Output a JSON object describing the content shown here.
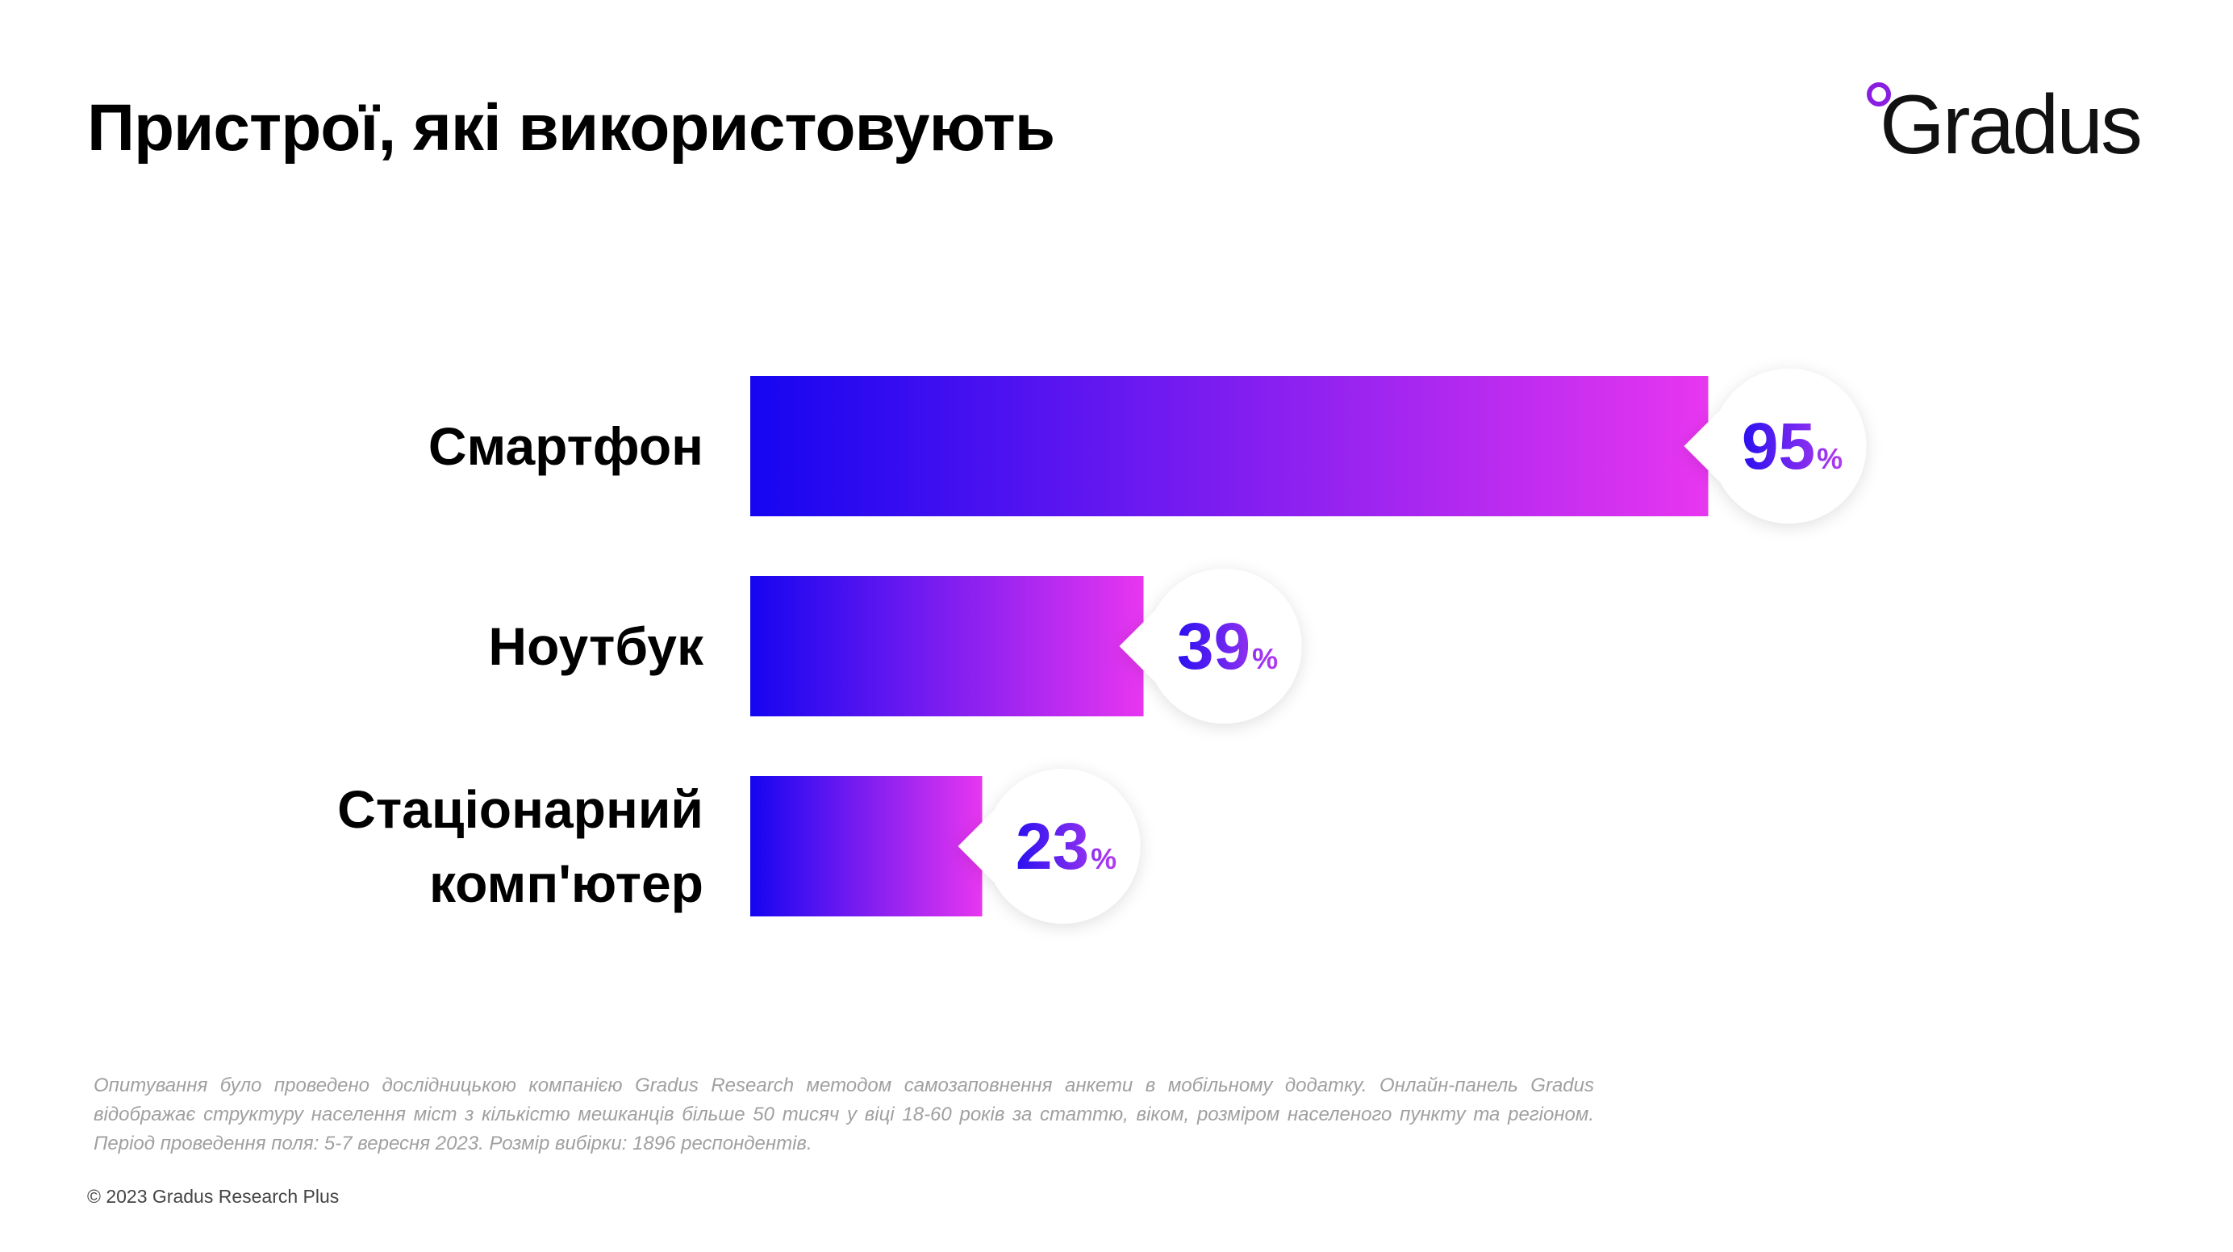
{
  "title": "Пристрої, які використовують",
  "logo": {
    "text": "Gradus",
    "accent_color": "#8a1fe0"
  },
  "chart_data": {
    "type": "bar",
    "orientation": "horizontal",
    "categories": [
      [
        "Смартфон"
      ],
      [
        "Ноутбук"
      ],
      [
        "Стаціонарний",
        "комп'ютер"
      ]
    ],
    "values": [
      95,
      39,
      23
    ],
    "value_suffix": "%",
    "xlim": [
      0,
      100
    ],
    "grid": false,
    "bar_gradient": [
      "#1505f0",
      "#e836f0"
    ],
    "value_color_gradient": [
      "#2a10f0",
      "#b43cf0"
    ]
  },
  "footnote": "Опитування було проведено дослідницькою компанією Gradus Research методом самозаповнення анкети в мобільному додатку. Онлайн-панель Gradus відображає структуру населення міст з кількістю мешканців більше 50 тисяч у віці 18-60 років за статтю, віком, розміром населеного пункту та регіоном. Період проведення поля: 5-7 вересня 2023. Розмір вибірки: 1896 респондентів.",
  "copyright": "© 2023 Gradus Research Plus"
}
